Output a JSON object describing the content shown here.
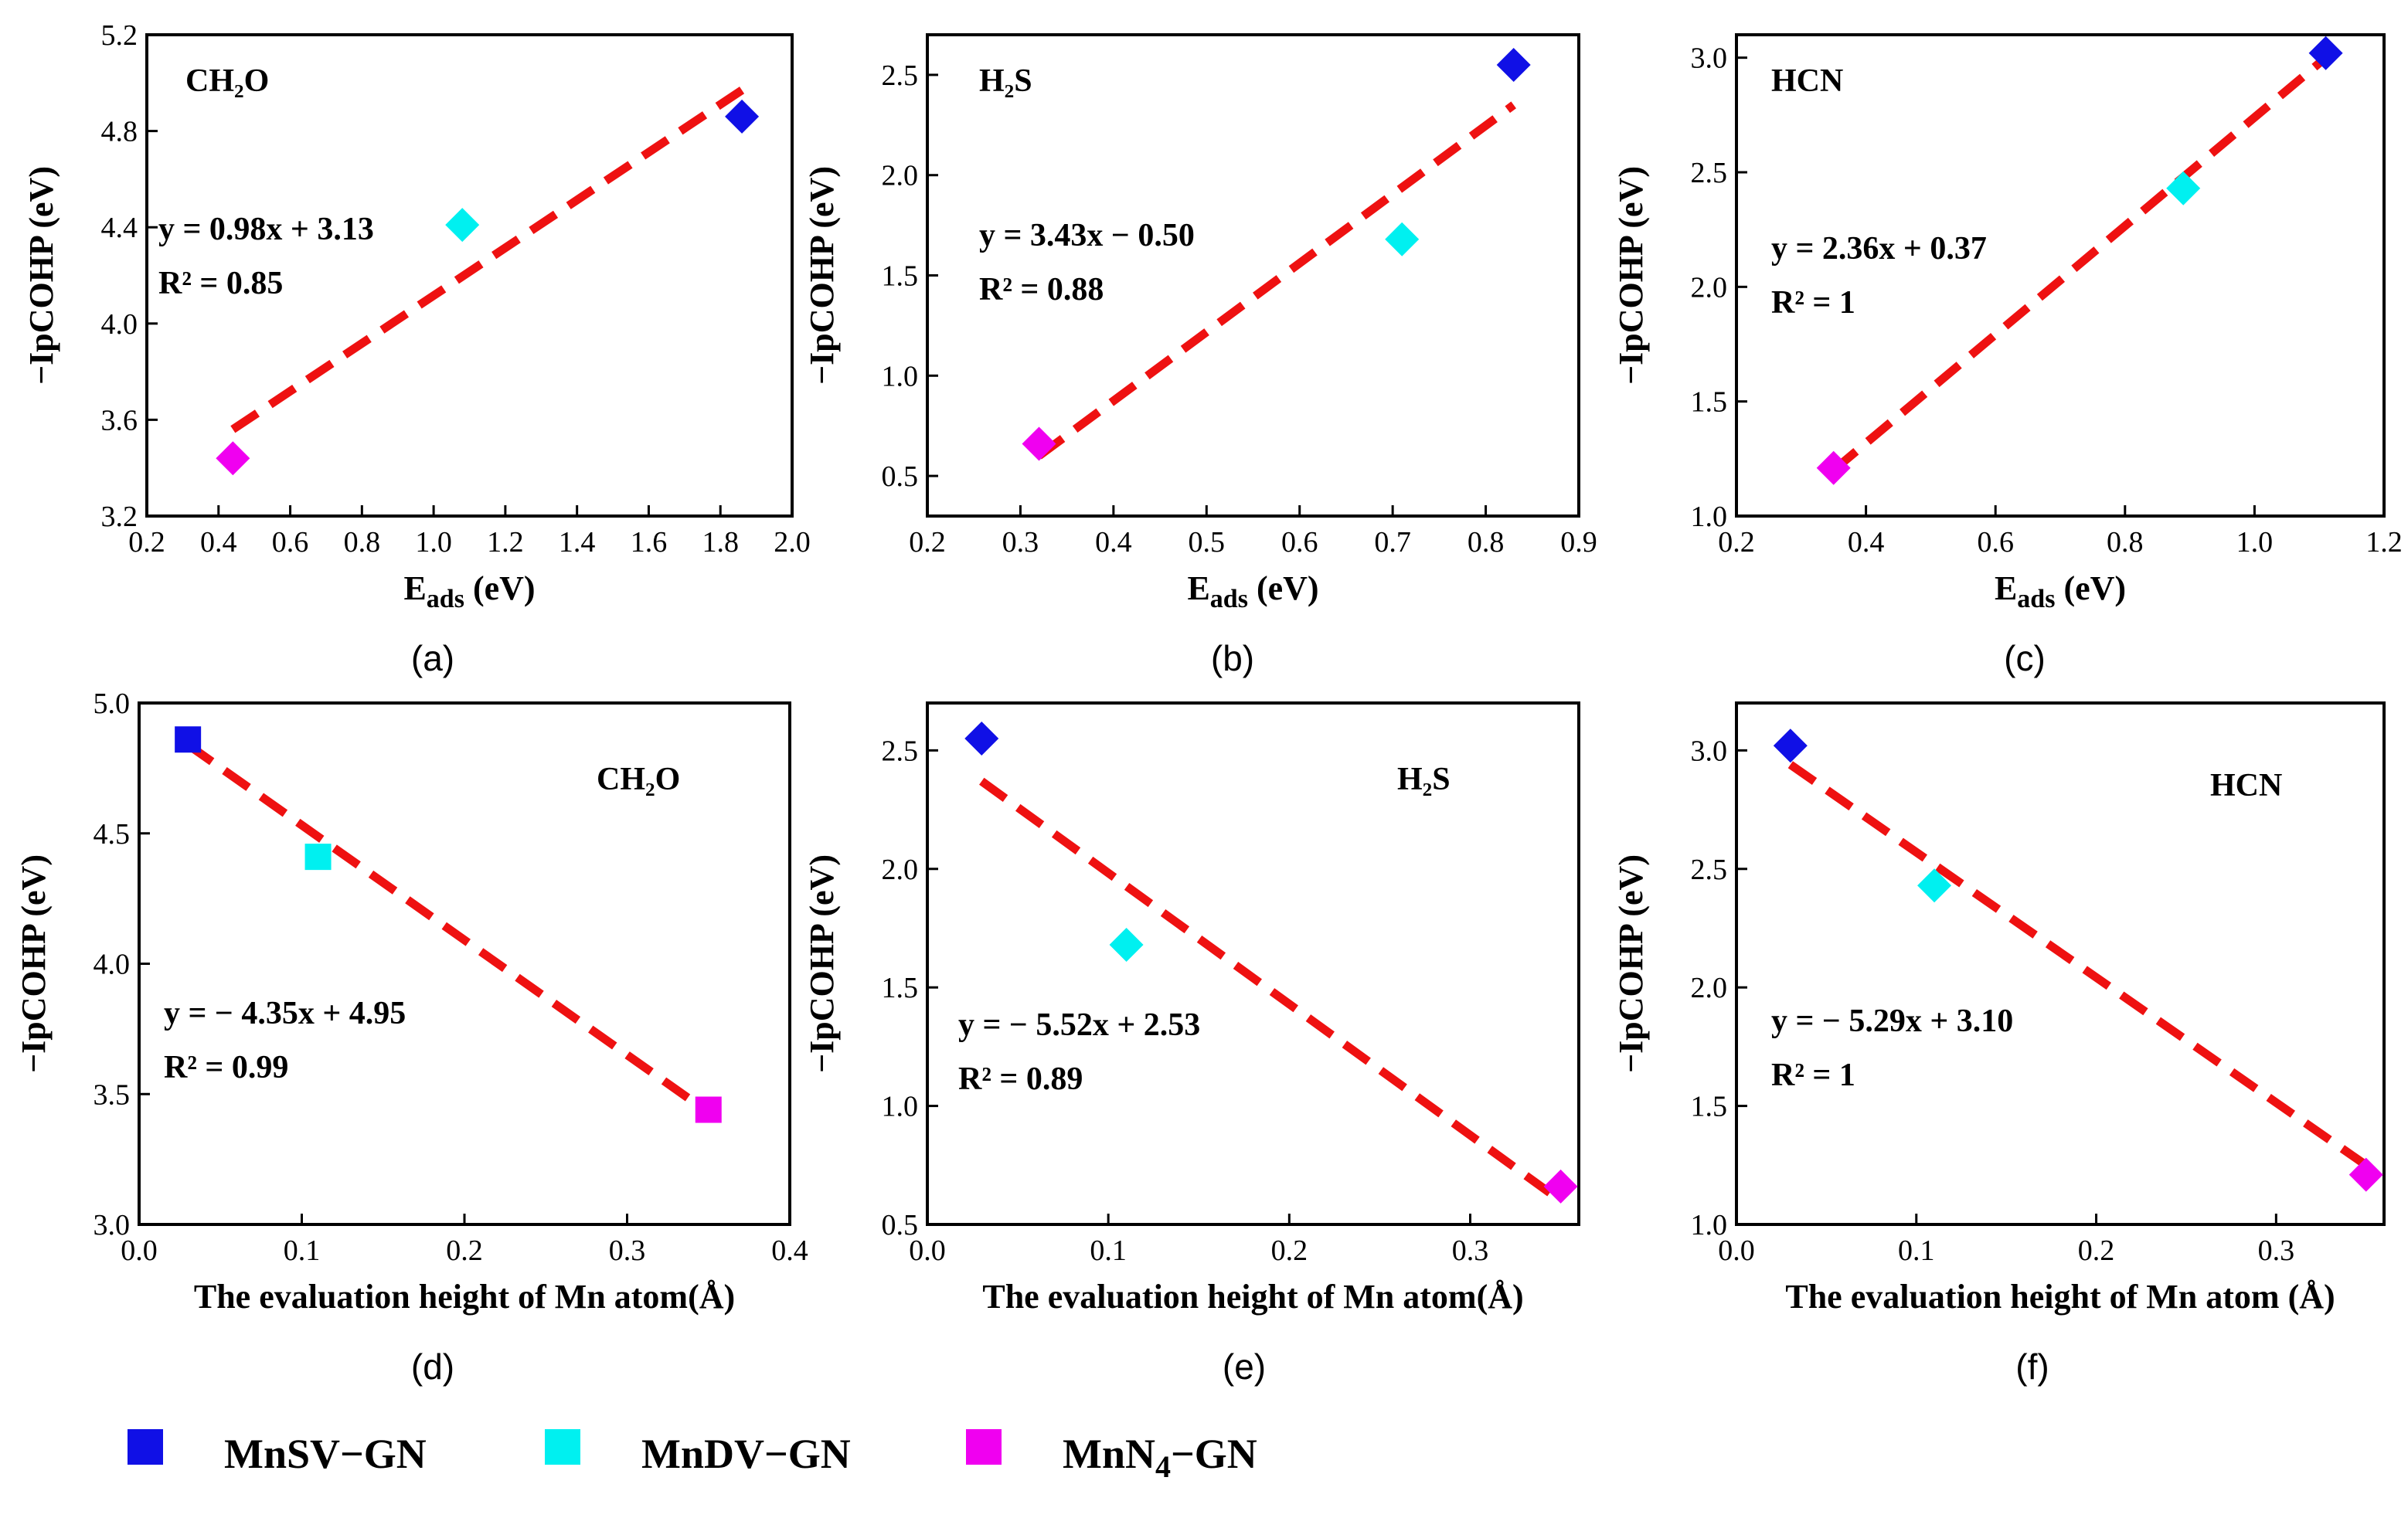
{
  "series_info": [
    {
      "name": "MnSV−GN",
      "color": "#1010e6"
    },
    {
      "name": "MnDV−GN",
      "color": "#00f0f0"
    },
    {
      "name": "MnN4−GN",
      "color": "#f000f0"
    }
  ],
  "fit_line_color": "#ee1111",
  "chart_data": [
    {
      "type": "scatter",
      "panel_label": "(a)",
      "molecule": "CH₂O",
      "xlabel": "E",
      "xlabel_sub": "ads",
      "xlabel_unit": " (eV)",
      "ylabel": "−IpCOHP (eV)",
      "xlim": [
        0.2,
        2.0
      ],
      "ylim": [
        3.2,
        5.2
      ],
      "xticks": [
        "0.2",
        "0.4",
        "0.6",
        "0.8",
        "1.0",
        "1.2",
        "1.4",
        "1.6",
        "1.8",
        "2.0"
      ],
      "yticks": [
        "3.2",
        "3.6",
        "4.0",
        "4.4",
        "4.8",
        "5.2"
      ],
      "marker": "diamond",
      "points": [
        {
          "series": "MnSV−GN",
          "x": 1.86,
          "y": 4.86
        },
        {
          "series": "MnDV−GN",
          "x": 1.08,
          "y": 4.41
        },
        {
          "series": "MnN4−GN",
          "x": 0.44,
          "y": 3.44
        }
      ],
      "fit_x": [
        0.44,
        1.86
      ],
      "fit_y": [
        3.56,
        4.97
      ],
      "equation": "y = 0.98x + 3.13",
      "r2": "R² = 0.85"
    },
    {
      "type": "scatter",
      "panel_label": "(b)",
      "molecule": "H₂S",
      "xlabel": "E",
      "xlabel_sub": "ads",
      "xlabel_unit": " (eV)",
      "ylabel": "−IpCOHP (eV)",
      "xlim": [
        0.2,
        0.9
      ],
      "ylim": [
        0.3,
        2.7
      ],
      "xticks": [
        "0.2",
        "0.3",
        "0.4",
        "0.5",
        "0.6",
        "0.7",
        "0.8",
        "0.9"
      ],
      "yticks": [
        "0.5",
        "1.0",
        "1.5",
        "2.0",
        "2.5"
      ],
      "marker": "diamond",
      "points": [
        {
          "series": "MnSV−GN",
          "x": 0.83,
          "y": 2.55
        },
        {
          "series": "MnDV−GN",
          "x": 0.71,
          "y": 1.68
        },
        {
          "series": "MnN4−GN",
          "x": 0.32,
          "y": 0.66
        }
      ],
      "fit_x": [
        0.32,
        0.83
      ],
      "fit_y": [
        0.6,
        2.35
      ],
      "equation": "y = 3.43x − 0.50",
      "r2": "R² = 0.88"
    },
    {
      "type": "scatter",
      "panel_label": "(c)",
      "molecule": "HCN",
      "xlabel": "E",
      "xlabel_sub": "ads",
      "xlabel_unit": " (eV)",
      "ylabel": "−IpCOHP (eV)",
      "xlim": [
        0.2,
        1.2
      ],
      "ylim": [
        1.0,
        3.1
      ],
      "xticks": [
        "0.2",
        "0.4",
        "0.6",
        "0.8",
        "1.0",
        "1.2"
      ],
      "yticks": [
        "1.0",
        "1.5",
        "2.0",
        "2.5",
        "3.0"
      ],
      "marker": "diamond",
      "points": [
        {
          "series": "MnSV−GN",
          "x": 1.11,
          "y": 3.02
        },
        {
          "series": "MnDV−GN",
          "x": 0.89,
          "y": 2.43
        },
        {
          "series": "MnN4−GN",
          "x": 0.35,
          "y": 1.21
        }
      ],
      "fit_x": [
        0.35,
        1.11
      ],
      "fit_y": [
        1.2,
        3.0
      ],
      "equation": "y = 2.36x + 0.37",
      "r2": "R² = 1"
    },
    {
      "type": "scatter",
      "panel_label": "(d)",
      "molecule": "CH₂O",
      "xlabel": "The evaluation height of Mn atom(Å)",
      "xlabel_sub": "",
      "xlabel_unit": "",
      "ylabel": "−IpCOHP (eV)",
      "xlim": [
        0.0,
        0.4
      ],
      "ylim": [
        3.0,
        5.0
      ],
      "xticks": [
        "0.0",
        "0.1",
        "0.2",
        "0.3",
        "0.4"
      ],
      "yticks": [
        "3.0",
        "3.5",
        "4.0",
        "4.5",
        "5.0"
      ],
      "marker": "square",
      "points": [
        {
          "series": "MnSV−GN",
          "x": 0.03,
          "y": 4.86
        },
        {
          "series": "MnDV−GN",
          "x": 0.11,
          "y": 4.41
        },
        {
          "series": "MnN4−GN",
          "x": 0.35,
          "y": 3.44
        }
      ],
      "fit_x": [
        0.03,
        0.35
      ],
      "fit_y": [
        4.84,
        3.43
      ],
      "equation": "y = − 4.35x + 4.95",
      "r2": "R² = 0.99"
    },
    {
      "type": "scatter",
      "panel_label": "(e)",
      "molecule": "H₂S",
      "xlabel": "The evaluation height of Mn atom(Å)",
      "xlabel_sub": "",
      "xlabel_unit": "",
      "ylabel": "−IpCOHP (eV)",
      "xlim": [
        0.0,
        0.36
      ],
      "ylim": [
        0.5,
        2.7
      ],
      "xticks": [
        "0.0",
        "0.1",
        "0.2",
        "0.3"
      ],
      "yticks": [
        "0.5",
        "1.0",
        "1.5",
        "2.0",
        "2.5"
      ],
      "marker": "diamond",
      "points": [
        {
          "series": "MnSV−GN",
          "x": 0.03,
          "y": 2.55
        },
        {
          "series": "MnDV−GN",
          "x": 0.11,
          "y": 1.68
        },
        {
          "series": "MnN4−GN",
          "x": 0.35,
          "y": 0.66
        }
      ],
      "fit_x": [
        0.03,
        0.35
      ],
      "fit_y": [
        2.37,
        0.6
      ],
      "equation": "y = − 5.52x + 2.53",
      "r2": "R² = 0.89"
    },
    {
      "type": "scatter",
      "panel_label": "(f)",
      "molecule": "HCN",
      "xlabel": "The evaluation height of Mn atom (Å)",
      "xlabel_sub": "",
      "xlabel_unit": "",
      "ylabel": "−IpCOHP (eV)",
      "xlim": [
        0.0,
        0.36
      ],
      "ylim": [
        1.0,
        3.2
      ],
      "xticks": [
        "0.0",
        "0.1",
        "0.2",
        "0.3"
      ],
      "yticks": [
        "1.0",
        "1.5",
        "2.0",
        "2.5",
        "3.0"
      ],
      "marker": "diamond",
      "points": [
        {
          "series": "MnSV−GN",
          "x": 0.03,
          "y": 3.02
        },
        {
          "series": "MnDV−GN",
          "x": 0.11,
          "y": 2.43
        },
        {
          "series": "MnN4−GN",
          "x": 0.35,
          "y": 1.21
        }
      ],
      "fit_x": [
        0.03,
        0.35
      ],
      "fit_y": [
        2.94,
        1.25
      ],
      "equation": "y = − 5.29x + 3.10",
      "r2": "R² = 1"
    }
  ],
  "legend": {
    "items": [
      {
        "text": "MnSV−GN",
        "color": "#1010e6"
      },
      {
        "text": "MnDV−GN",
        "color": "#00f0f0"
      },
      {
        "main": "MnN",
        "sub": "4",
        "tail": "−GN",
        "color": "#f000f0"
      }
    ]
  }
}
